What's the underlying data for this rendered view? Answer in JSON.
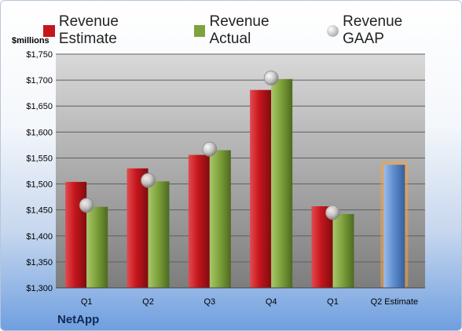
{
  "colors": {
    "estimate": "#c4161c",
    "actual": "#7fa33c",
    "gaap": "#b0b0b0",
    "future": "#5f8fd0",
    "future_glow": "#f7a33a"
  },
  "company": "NetApp",
  "chart_data": {
    "type": "bar",
    "ylabel": "$millions",
    "xlabel": "",
    "ylim": [
      1300,
      1750
    ],
    "yticks": [
      "$1,300",
      "$1,350",
      "$1,400",
      "$1,450",
      "$1,500",
      "$1,550",
      "$1,600",
      "$1,650",
      "$1,700",
      "$1,750"
    ],
    "yticks_values": [
      1300,
      1350,
      1400,
      1450,
      1500,
      1550,
      1600,
      1650,
      1700,
      1750
    ],
    "categories": [
      "Q1",
      "Q2",
      "Q3",
      "Q4",
      "Q1",
      "Q2 Estimate"
    ],
    "legend_position": "top",
    "grid": true,
    "series": [
      {
        "name": "Revenue Estimate",
        "kind": "bar",
        "values": [
          1504,
          1530,
          1556,
          1681,
          1457,
          null
        ]
      },
      {
        "name": "Revenue Actual",
        "kind": "bar",
        "values": [
          1456,
          1505,
          1565,
          1702,
          1442,
          null
        ]
      },
      {
        "name": "Revenue GAAP",
        "kind": "marker",
        "values": [
          1459,
          1507,
          1567,
          1704,
          1445,
          null
        ]
      }
    ],
    "future_estimate": {
      "category": "Q2 Estimate",
      "value": 1537
    }
  }
}
